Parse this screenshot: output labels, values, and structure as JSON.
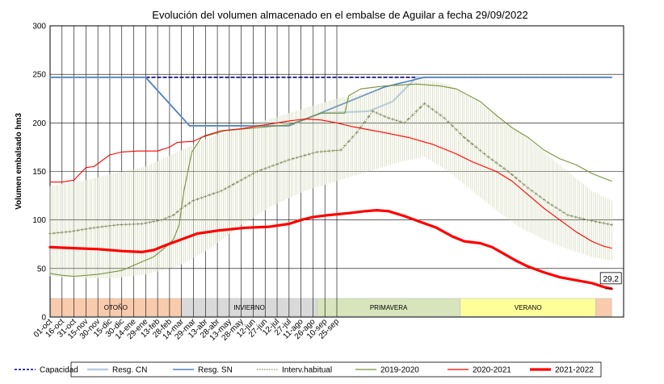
{
  "chart_data": {
    "type": "line",
    "title": "Evolución del volumen almacenado en el embalse de Aguilar a fecha 29/09/2022",
    "ylabel": "Volumen embalsado hm3",
    "xlabel": "",
    "ylim": [
      0,
      300
    ],
    "yticks": [
      0,
      50,
      100,
      150,
      200,
      250,
      300
    ],
    "x_tick_labels": [
      "01-oct",
      "16-oct",
      "31-oct",
      "15-nov",
      "30-nov",
      "15-dic",
      "30-dic",
      "14-ene",
      "29-ene",
      "13-feb",
      "28-feb",
      "14-mar",
      "29-mar",
      "13-abr",
      "28-abr",
      "13-may",
      "28-may",
      "12-jun",
      "27-jun",
      "12-jul",
      "27-jul",
      "11-ago",
      "26-ago",
      "10-sep",
      "25-sep"
    ],
    "grid": true,
    "legend_position": "bottom",
    "seasons": [
      {
        "label": "OTOÑO",
        "color": "#f8cbad",
        "start_day": 0,
        "end_day": 165
      },
      {
        "label": "INVIERNO",
        "color": "#d9d9d9",
        "start_day": 165,
        "end_day": 335
      },
      {
        "label": "PRIMAVERA",
        "color": "#d8e4bc",
        "start_day": 335,
        "end_day": 515
      },
      {
        "label": "VERANO",
        "color": "#ffff99",
        "start_day": 515,
        "end_day": 685
      },
      {
        "label": "",
        "color": "#f8cbad",
        "start_day": 685,
        "end_day": 705
      }
    ],
    "end_annotation": {
      "text": "29,2",
      "day": 705,
      "value": 29.2
    },
    "series": [
      {
        "name": "Capacidad",
        "style": "capacity",
        "color": "#000080",
        "points": [
          [
            0,
            247
          ],
          [
            705,
            247
          ]
        ]
      },
      {
        "name": "Resg. CN",
        "style": "light",
        "color": "#b8cce4",
        "points": [
          [
            0,
            247
          ],
          [
            120,
            247
          ],
          [
            175,
            197
          ],
          [
            300,
            197
          ],
          [
            340,
            210
          ],
          [
            400,
            212
          ],
          [
            430,
            222
          ],
          [
            460,
            247
          ],
          [
            705,
            247
          ]
        ]
      },
      {
        "name": "Resg. SN",
        "style": "steel",
        "color": "#4f81bd",
        "points": [
          [
            0,
            247
          ],
          [
            120,
            247
          ],
          [
            175,
            197
          ],
          [
            300,
            197
          ],
          [
            420,
            237
          ],
          [
            470,
            247
          ],
          [
            705,
            247
          ]
        ]
      },
      {
        "name": "Interv.habitual",
        "style": "band",
        "color": "#b6bf8a",
        "mean": [
          [
            0,
            86
          ],
          [
            25,
            88
          ],
          [
            55,
            92
          ],
          [
            85,
            95
          ],
          [
            115,
            96
          ],
          [
            140,
            100
          ],
          [
            155,
            105
          ],
          [
            165,
            112
          ],
          [
            180,
            120
          ],
          [
            215,
            130
          ],
          [
            260,
            150
          ],
          [
            300,
            162
          ],
          [
            335,
            170
          ],
          [
            365,
            172
          ],
          [
            385,
            190
          ],
          [
            405,
            212
          ],
          [
            425,
            205
          ],
          [
            445,
            200
          ],
          [
            470,
            220
          ],
          [
            495,
            205
          ],
          [
            520,
            185
          ],
          [
            550,
            165
          ],
          [
            575,
            150
          ],
          [
            600,
            133
          ],
          [
            625,
            118
          ],
          [
            650,
            105
          ],
          [
            675,
            100
          ],
          [
            705,
            95
          ]
        ],
        "low": [
          [
            0,
            42
          ],
          [
            40,
            40
          ],
          [
            80,
            40
          ],
          [
            120,
            44
          ],
          [
            160,
            52
          ],
          [
            200,
            70
          ],
          [
            240,
            95
          ],
          [
            280,
            115
          ],
          [
            320,
            130
          ],
          [
            360,
            140
          ],
          [
            400,
            150
          ],
          [
            440,
            160
          ],
          [
            470,
            165
          ],
          [
            500,
            150
          ],
          [
            530,
            130
          ],
          [
            560,
            110
          ],
          [
            590,
            92
          ],
          [
            620,
            80
          ],
          [
            650,
            70
          ],
          [
            680,
            62
          ],
          [
            705,
            58
          ]
        ],
        "high": [
          [
            0,
            135
          ],
          [
            40,
            140
          ],
          [
            80,
            148
          ],
          [
            120,
            155
          ],
          [
            160,
            170
          ],
          [
            200,
            185
          ],
          [
            240,
            195
          ],
          [
            280,
            205
          ],
          [
            320,
            215
          ],
          [
            360,
            225
          ],
          [
            400,
            232
          ],
          [
            440,
            240
          ],
          [
            470,
            245
          ],
          [
            500,
            240
          ],
          [
            530,
            225
          ],
          [
            560,
            208
          ],
          [
            590,
            190
          ],
          [
            620,
            170
          ],
          [
            650,
            150
          ],
          [
            680,
            130
          ],
          [
            705,
            120
          ]
        ]
      },
      {
        "name": "2019-2020",
        "style": "olive",
        "color": "#76923c",
        "points": [
          [
            0,
            45
          ],
          [
            15,
            43
          ],
          [
            30,
            42
          ],
          [
            60,
            44
          ],
          [
            90,
            48
          ],
          [
            110,
            55
          ],
          [
            130,
            62
          ],
          [
            145,
            72
          ],
          [
            155,
            80
          ],
          [
            162,
            95
          ],
          [
            168,
            130
          ],
          [
            178,
            170
          ],
          [
            190,
            185
          ],
          [
            220,
            192
          ],
          [
            260,
            195
          ],
          [
            300,
            198
          ],
          [
            340,
            210
          ],
          [
            370,
            210
          ],
          [
            375,
            228
          ],
          [
            390,
            235
          ],
          [
            420,
            238
          ],
          [
            460,
            240
          ],
          [
            490,
            238
          ],
          [
            510,
            235
          ],
          [
            540,
            222
          ],
          [
            560,
            208
          ],
          [
            580,
            195
          ],
          [
            600,
            185
          ],
          [
            620,
            172
          ],
          [
            640,
            163
          ],
          [
            660,
            157
          ],
          [
            680,
            148
          ],
          [
            695,
            143
          ],
          [
            705,
            140
          ]
        ]
      },
      {
        "name": "2020-2021",
        "style": "thin-red",
        "color": "#ff0000",
        "points": [
          [
            0,
            139
          ],
          [
            15,
            139
          ],
          [
            30,
            141
          ],
          [
            45,
            154
          ],
          [
            55,
            155
          ],
          [
            75,
            167
          ],
          [
            90,
            170
          ],
          [
            110,
            171
          ],
          [
            135,
            171
          ],
          [
            150,
            175
          ],
          [
            160,
            180
          ],
          [
            180,
            181
          ],
          [
            195,
            187
          ],
          [
            215,
            192
          ],
          [
            240,
            194
          ],
          [
            270,
            198
          ],
          [
            300,
            202
          ],
          [
            320,
            204
          ],
          [
            340,
            203
          ],
          [
            360,
            200
          ],
          [
            380,
            196
          ],
          [
            400,
            193
          ],
          [
            420,
            190
          ],
          [
            450,
            185
          ],
          [
            480,
            178
          ],
          [
            510,
            168
          ],
          [
            530,
            160
          ],
          [
            560,
            150
          ],
          [
            580,
            140
          ],
          [
            600,
            126
          ],
          [
            620,
            112
          ],
          [
            640,
            100
          ],
          [
            660,
            88
          ],
          [
            680,
            78
          ],
          [
            695,
            73
          ],
          [
            705,
            71
          ]
        ]
      },
      {
        "name": "2021-2022",
        "style": "thick-red",
        "color": "#ff0000",
        "points": [
          [
            0,
            72
          ],
          [
            30,
            71
          ],
          [
            60,
            70
          ],
          [
            90,
            68
          ],
          [
            115,
            67
          ],
          [
            130,
            69
          ],
          [
            145,
            74
          ],
          [
            165,
            80
          ],
          [
            185,
            86
          ],
          [
            210,
            89
          ],
          [
            245,
            92
          ],
          [
            275,
            93
          ],
          [
            300,
            96
          ],
          [
            315,
            100
          ],
          [
            330,
            103
          ],
          [
            350,
            105
          ],
          [
            375,
            107
          ],
          [
            395,
            109
          ],
          [
            410,
            110
          ],
          [
            425,
            109
          ],
          [
            445,
            104
          ],
          [
            465,
            98
          ],
          [
            485,
            92
          ],
          [
            505,
            83
          ],
          [
            520,
            78
          ],
          [
            540,
            76
          ],
          [
            555,
            72
          ],
          [
            570,
            65
          ],
          [
            585,
            58
          ],
          [
            600,
            52
          ],
          [
            620,
            46
          ],
          [
            640,
            41
          ],
          [
            660,
            38
          ],
          [
            680,
            35
          ],
          [
            695,
            31
          ],
          [
            705,
            29.2
          ]
        ]
      }
    ]
  },
  "legend": [
    {
      "label": "Capacidad",
      "style": "capacity"
    },
    {
      "label": "Resg. CN",
      "style": "light"
    },
    {
      "label": "Resg. SN",
      "style": "steel"
    },
    {
      "label": "Interv.habitual",
      "style": "band"
    },
    {
      "label": "2019-2020",
      "style": "olive"
    },
    {
      "label": "2020-2021",
      "style": "thin-red"
    },
    {
      "label": "2021-2022",
      "style": "thick-red"
    }
  ]
}
